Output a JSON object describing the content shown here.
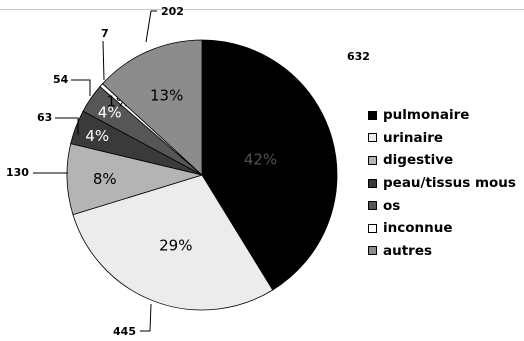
{
  "chart_data": {
    "type": "pie",
    "title": "",
    "categories": [
      "pulmonaire",
      "urinaire",
      "digestive",
      "peau/tissus mous",
      "os",
      "inconnue",
      "autres"
    ],
    "values": [
      632,
      445,
      130,
      63,
      54,
      7,
      202
    ],
    "percent_labels": [
      "42%",
      "29%",
      "8%",
      "4%",
      "4%",
      "1%",
      "13%"
    ],
    "colors": [
      "#000000",
      "#ececec",
      "#b4b4b4",
      "#3a3a3a",
      "#565656",
      "#ffffff",
      "#8c8c8c"
    ],
    "legend_position": "right",
    "start_angle": "12 o'clock",
    "direction": "clockwise"
  }
}
